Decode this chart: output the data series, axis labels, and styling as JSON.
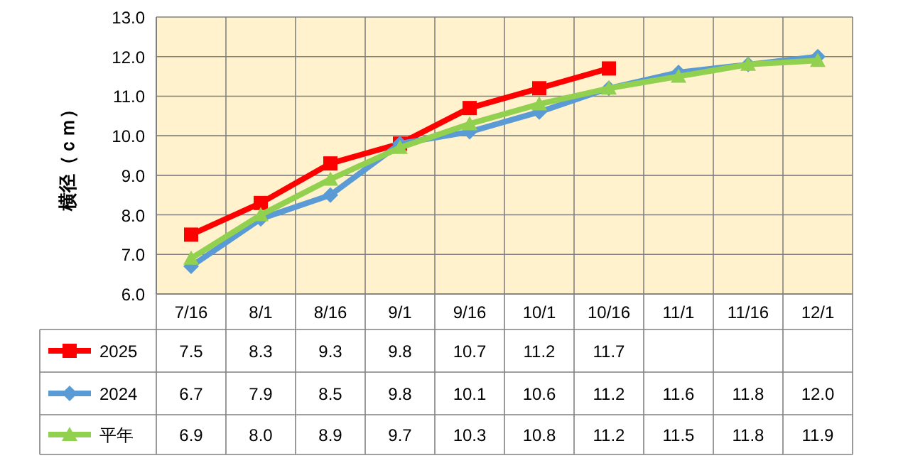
{
  "chart_data": {
    "type": "line",
    "ylabel": "横径（ｃｍ）",
    "categories": [
      "7/16",
      "8/1",
      "8/16",
      "9/1",
      "9/16",
      "10/1",
      "10/16",
      "11/1",
      "11/16",
      "12/1"
    ],
    "ylim": [
      6,
      13
    ],
    "yticks": [
      {
        "value": 6,
        "label": "6.0"
      },
      {
        "value": 7,
        "label": "7.0"
      },
      {
        "value": 8,
        "label": "8.0"
      },
      {
        "value": 9,
        "label": "9.0"
      },
      {
        "value": 10,
        "label": "10.0"
      },
      {
        "value": 11,
        "label": "11.0"
      },
      {
        "value": 12,
        "label": "12.0"
      },
      {
        "value": 13,
        "label": "13.0"
      }
    ],
    "grid": "y",
    "legend": "bottom left",
    "series": [
      {
        "name": "2025",
        "color": "#ff0000",
        "marker": "square",
        "values": [
          7.5,
          8.3,
          9.3,
          9.8,
          10.7,
          11.2,
          11.7,
          null,
          null,
          null
        ],
        "value_labels": [
          "7.5",
          "8.3",
          "9.3",
          "9.8",
          "10.7",
          "11.2",
          "11.7",
          null,
          null,
          null
        ]
      },
      {
        "name": "2024",
        "color": "#5b9bd5",
        "marker": "diamond",
        "values": [
          6.7,
          7.9,
          8.5,
          9.8,
          10.1,
          10.6,
          11.2,
          11.6,
          11.8,
          12.0
        ],
        "value_labels": [
          "6.7",
          "7.9",
          "8.5",
          "9.8",
          "10.1",
          "10.6",
          "11.2",
          "11.6",
          "11.8",
          "12.0"
        ]
      },
      {
        "name": "平年",
        "color": "#92d050",
        "marker": "triangle",
        "values": [
          6.9,
          8.0,
          8.9,
          9.7,
          10.3,
          10.8,
          11.2,
          11.5,
          11.8,
          11.9
        ],
        "value_labels": [
          "6.9",
          "8.0",
          "8.9",
          "9.7",
          "10.3",
          "10.8",
          "11.2",
          "11.5",
          "11.8",
          "11.9"
        ]
      }
    ]
  }
}
